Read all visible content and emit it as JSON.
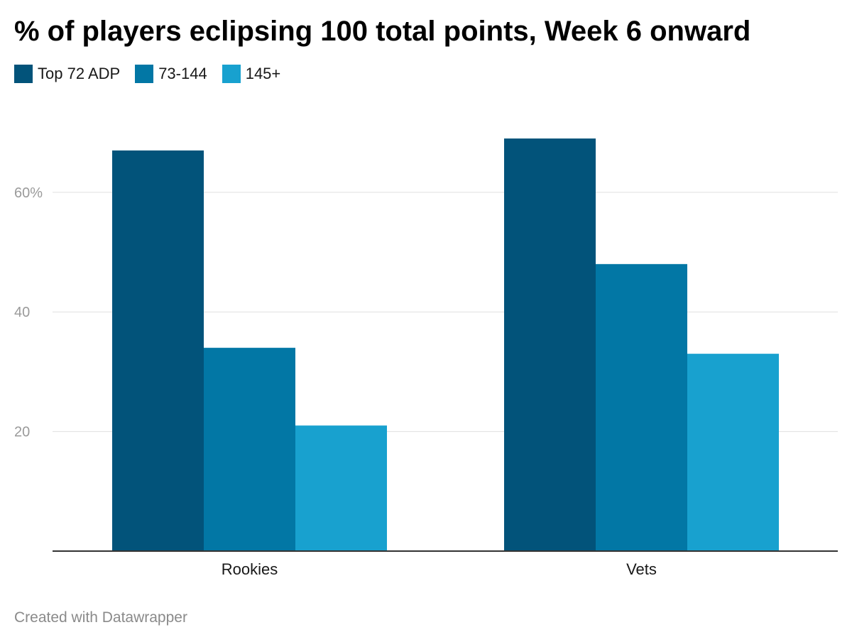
{
  "title": "% of players eclipsing 100 total points, Week 6 onward",
  "footer": "Created with Datawrapper",
  "colors": {
    "top72": "#02537a",
    "mid": "#0277a5",
    "late": "#18a1cf",
    "grid": "#e0e0e0",
    "axis": "#333333"
  },
  "chart_data": {
    "type": "bar",
    "title": "% of players eclipsing 100 total points, Week 6 onward",
    "categories": [
      "Rookies",
      "Vets"
    ],
    "series": [
      {
        "name": "Top 72 ADP",
        "values": [
          67,
          69
        ],
        "color": "#02537a"
      },
      {
        "name": "73-144",
        "values": [
          34,
          48
        ],
        "color": "#0277a5"
      },
      {
        "name": "145+",
        "values": [
          21,
          33
        ],
        "color": "#18a1cf"
      }
    ],
    "yticks": [
      {
        "value": 20,
        "label": "20"
      },
      {
        "value": 40,
        "label": "40"
      },
      {
        "value": 60,
        "label": "60%"
      }
    ],
    "ylim": [
      0,
      80
    ],
    "xlabel": "",
    "ylabel": "",
    "grid": true,
    "legend": "top-left"
  }
}
